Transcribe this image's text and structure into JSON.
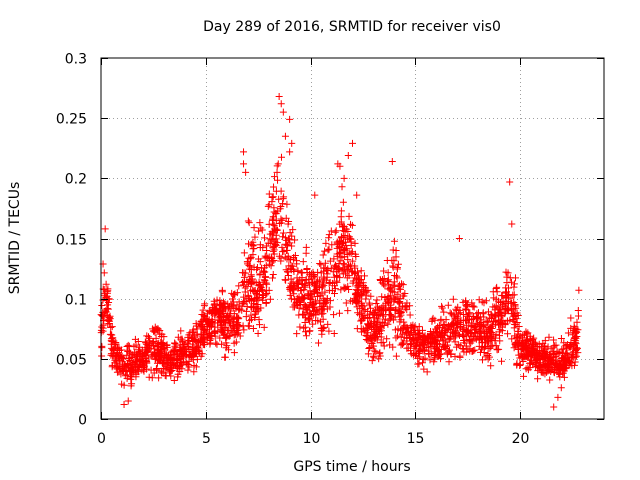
{
  "chart_data": {
    "type": "scatter",
    "title": "Day 289 of 2016, SRMTID for receiver vis0",
    "xlabel": "GPS time / hours",
    "ylabel": "SRMTID / TECUs",
    "xlim": [
      0,
      24
    ],
    "ylim": [
      0,
      0.3
    ],
    "xticks": [
      0,
      5,
      10,
      15,
      20
    ],
    "xtick_labels": [
      "0",
      "5",
      "10",
      "15",
      "20"
    ],
    "yticks": [
      0,
      0.05,
      0.1,
      0.15,
      0.2,
      0.25,
      0.3
    ],
    "ytick_labels": [
      "0",
      "0.05",
      "0.1",
      "0.15",
      "0.2",
      "0.25",
      "0.3"
    ],
    "grid": true,
    "marker": "+",
    "series": [
      {
        "name": "vis0",
        "color": "#ff0000",
        "profile_x": [
          0,
          0.1,
          0.3,
          0.5,
          1,
          1.5,
          2,
          2.5,
          3,
          3.5,
          4,
          4.5,
          5,
          5.5,
          6,
          6.5,
          7,
          7.5,
          8,
          8.5,
          9,
          9.5,
          10,
          10.5,
          11,
          11.5,
          12,
          12.5,
          13,
          13.5,
          14,
          14.5,
          15,
          15.5,
          16,
          16.5,
          17,
          17.5,
          18,
          18.5,
          19,
          19.5,
          20,
          20.5,
          21,
          21.5,
          22,
          22.5,
          22.8
        ],
        "profile_y": [
          0.07,
          0.09,
          0.1,
          0.06,
          0.045,
          0.045,
          0.05,
          0.06,
          0.05,
          0.05,
          0.055,
          0.06,
          0.075,
          0.085,
          0.08,
          0.08,
          0.12,
          0.11,
          0.14,
          0.17,
          0.13,
          0.1,
          0.1,
          0.1,
          0.12,
          0.15,
          0.12,
          0.09,
          0.07,
          0.09,
          0.11,
          0.08,
          0.065,
          0.06,
          0.065,
          0.07,
          0.075,
          0.08,
          0.075,
          0.07,
          0.08,
          0.1,
          0.06,
          0.055,
          0.05,
          0.05,
          0.045,
          0.06,
          0.075
        ],
        "profile_spread": [
          0.025,
          0.04,
          0.03,
          0.02,
          0.018,
          0.02,
          0.02,
          0.03,
          0.02,
          0.02,
          0.02,
          0.02,
          0.025,
          0.03,
          0.03,
          0.03,
          0.06,
          0.05,
          0.06,
          0.06,
          0.05,
          0.04,
          0.04,
          0.04,
          0.06,
          0.06,
          0.05,
          0.035,
          0.03,
          0.04,
          0.06,
          0.035,
          0.02,
          0.02,
          0.025,
          0.025,
          0.03,
          0.03,
          0.03,
          0.03,
          0.04,
          0.05,
          0.025,
          0.02,
          0.02,
          0.02,
          0.02,
          0.025,
          0.03
        ],
        "point_count": 2700,
        "peaks": [
          {
            "x": 8.5,
            "y": 0.268
          },
          {
            "x": 8.6,
            "y": 0.262
          },
          {
            "x": 8.7,
            "y": 0.255
          },
          {
            "x": 9.0,
            "y": 0.249
          },
          {
            "x": 8.8,
            "y": 0.235
          },
          {
            "x": 9.1,
            "y": 0.229
          },
          {
            "x": 9.0,
            "y": 0.222
          },
          {
            "x": 6.8,
            "y": 0.222
          },
          {
            "x": 6.8,
            "y": 0.212
          },
          {
            "x": 6.9,
            "y": 0.205
          },
          {
            "x": 8.4,
            "y": 0.205
          },
          {
            "x": 12.0,
            "y": 0.229
          },
          {
            "x": 11.8,
            "y": 0.219
          },
          {
            "x": 11.3,
            "y": 0.212
          },
          {
            "x": 11.4,
            "y": 0.21
          },
          {
            "x": 13.9,
            "y": 0.214
          },
          {
            "x": 19.5,
            "y": 0.197
          },
          {
            "x": 11.6,
            "y": 0.2
          },
          {
            "x": 11.5,
            "y": 0.193
          },
          {
            "x": 12.2,
            "y": 0.186
          },
          {
            "x": 10.2,
            "y": 0.186
          },
          {
            "x": 19.6,
            "y": 0.162
          },
          {
            "x": 0.2,
            "y": 0.158
          },
          {
            "x": 17.1,
            "y": 0.15
          },
          {
            "x": 22.8,
            "y": 0.107
          },
          {
            "x": 1.1,
            "y": 0.012
          },
          {
            "x": 1.3,
            "y": 0.015
          },
          {
            "x": 21.6,
            "y": 0.01
          },
          {
            "x": 21.8,
            "y": 0.018
          }
        ]
      }
    ]
  }
}
